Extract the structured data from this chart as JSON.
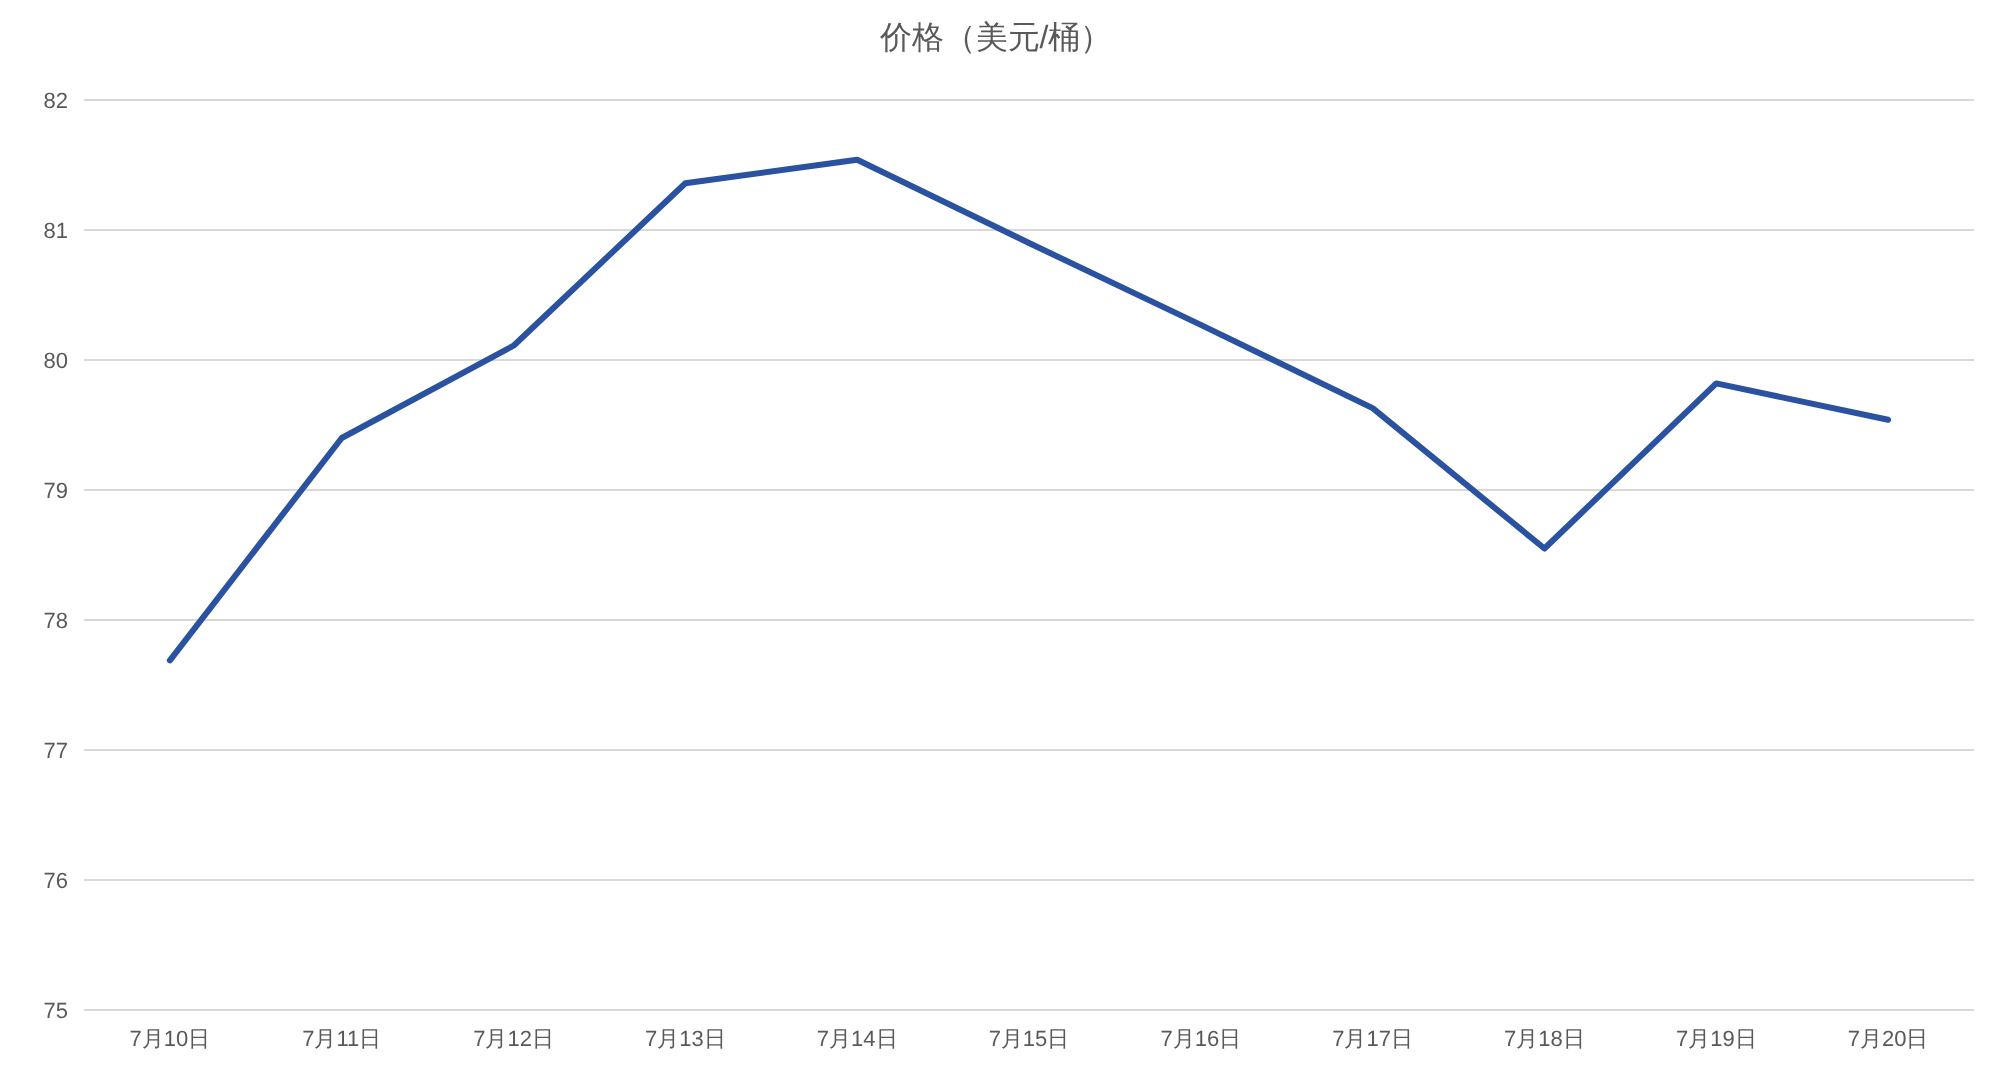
{
  "chart_data": {
    "type": "line",
    "title": "价格（美元/桶）",
    "categories": [
      "7月10日",
      "7月11日",
      "7月12日",
      "7月13日",
      "7月14日",
      "7月15日",
      "7月16日",
      "7月17日",
      "7月18日",
      "7月19日",
      "7月20日"
    ],
    "series": [
      {
        "color": "#2a52a0",
        "values": [
          77.69,
          79.4,
          80.11,
          81.36,
          81.54,
          80.9,
          80.27,
          79.63,
          78.55,
          79.82,
          79.54
        ]
      }
    ],
    "ylim": [
      75,
      82
    ],
    "yticks": [
      75,
      76,
      77,
      78,
      79,
      80,
      81,
      82
    ],
    "grid": "y",
    "marker": "none",
    "line_style": "solid"
  }
}
